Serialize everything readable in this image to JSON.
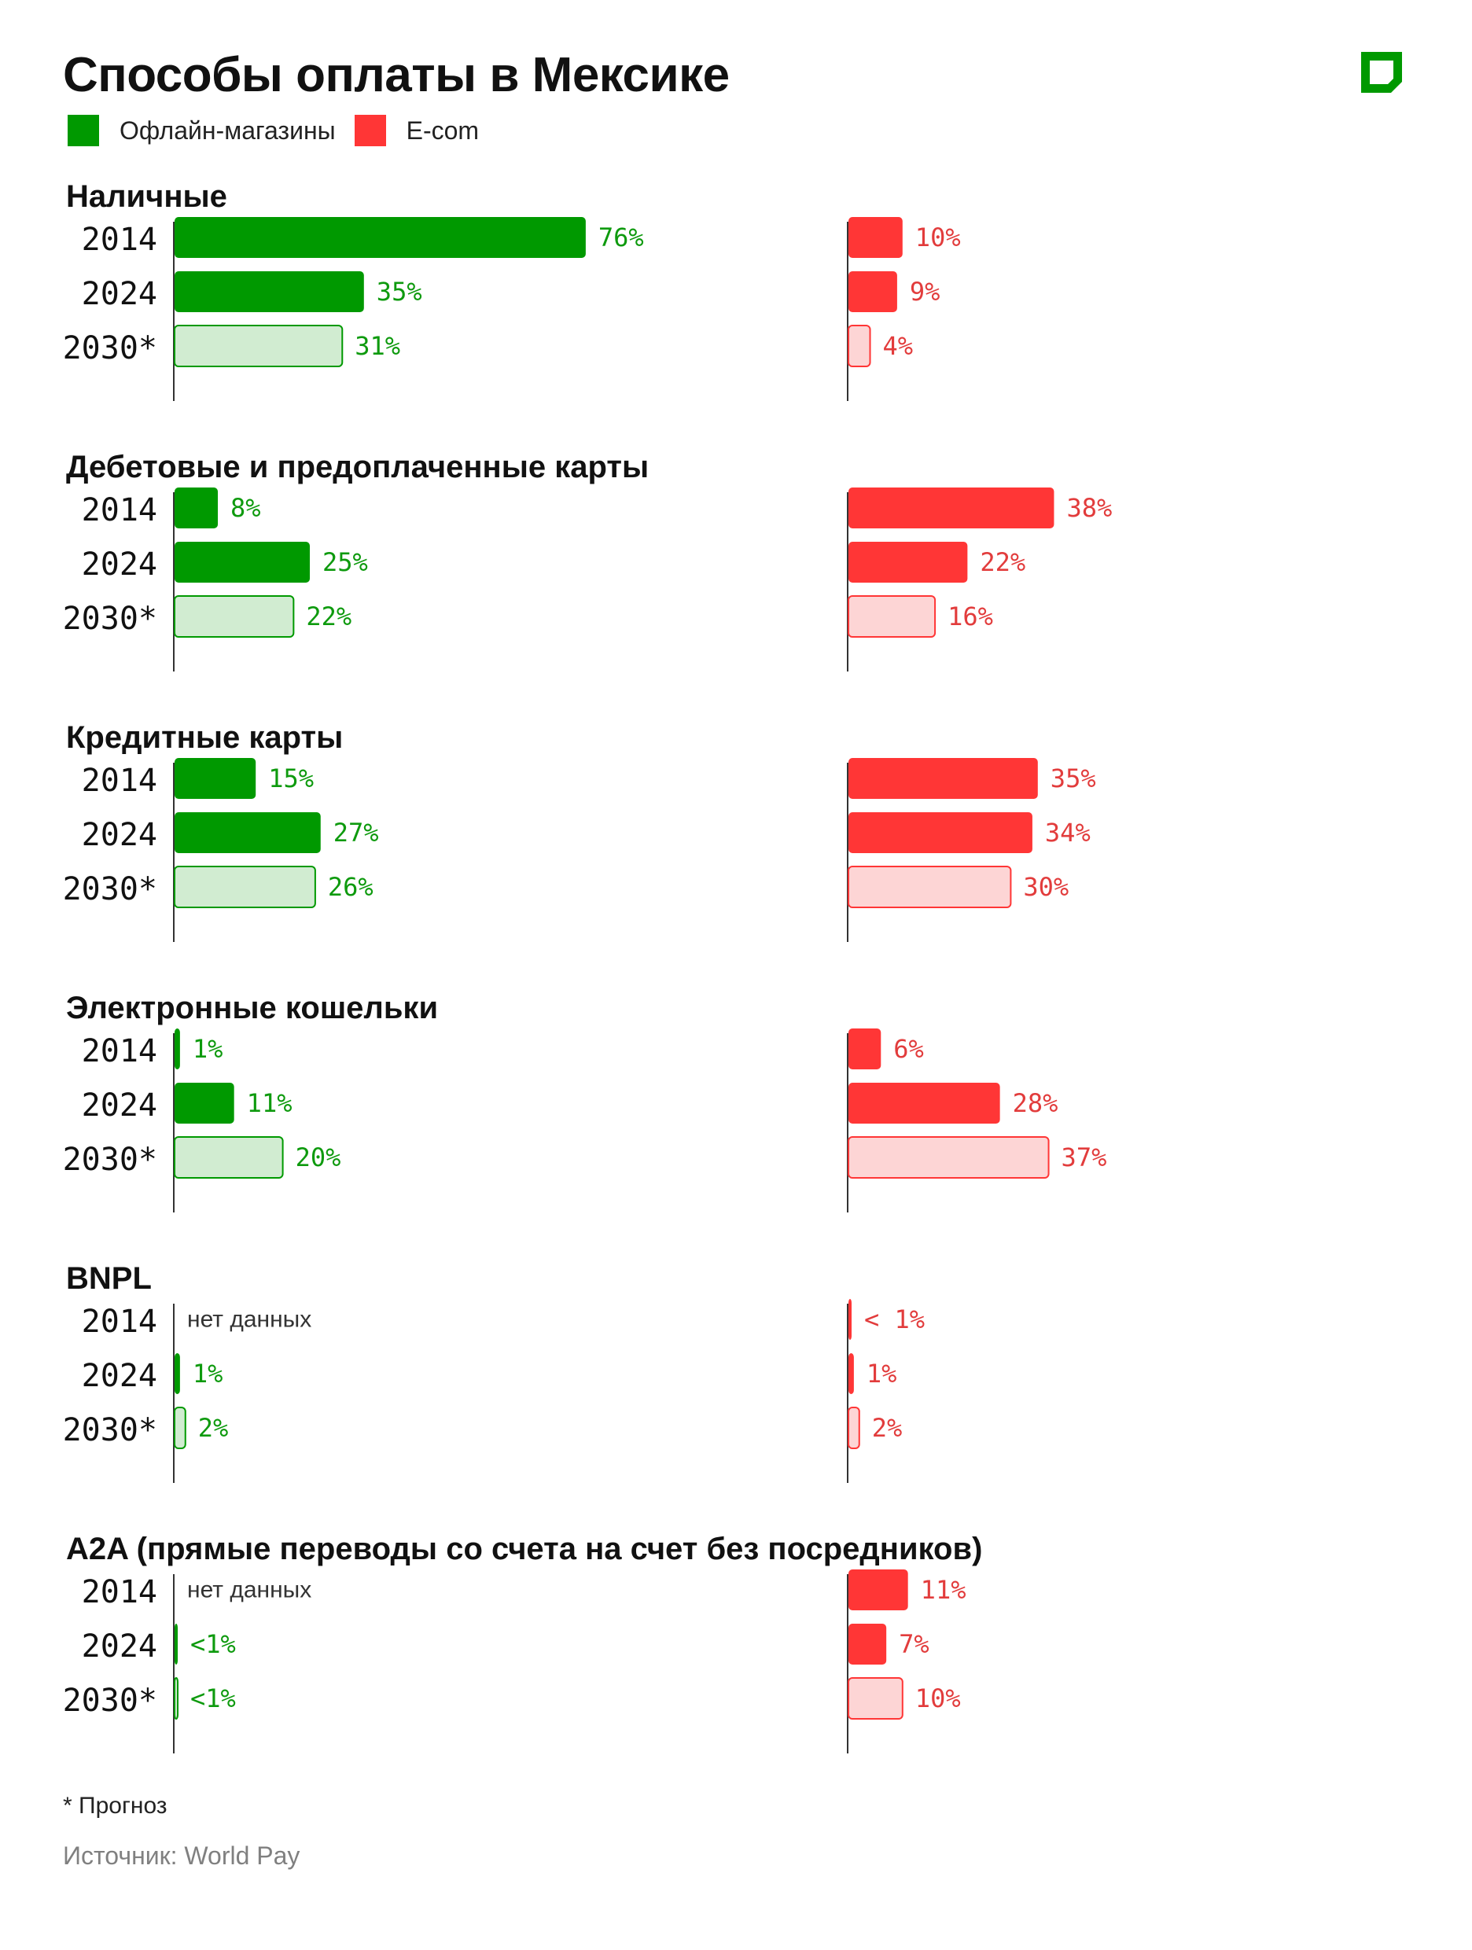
{
  "colors": {
    "offline": "#009900",
    "offline_forecast_fill": "#d1ecd1",
    "ecom": "#ff3636",
    "ecom_forecast_fill": "#fdd5d5",
    "offline_text": "#0e9a0e",
    "ecom_text": "#e23c3c",
    "axis": "#333333"
  },
  "logo": {
    "icon": "brand-square-logo-icon"
  },
  "footnote": "* Прогноз",
  "source": "Источник: World Pay",
  "chart_data": {
    "type": "bar",
    "orientation": "horizontal",
    "title": "Способы оплаты в Мексике",
    "unit": "%",
    "legend": [
      {
        "key": "offline",
        "label": "Офлайн-магазины"
      },
      {
        "key": "ecom",
        "label": "E-com"
      }
    ],
    "categories": [
      "2014",
      "2024",
      "2030*"
    ],
    "forecast_category": "2030*",
    "groups": [
      {
        "name": "Наличные",
        "series": [
          {
            "name": "Офлайн-магазины",
            "values": [
              76,
              35,
              31
            ],
            "labels": [
              "76%",
              "35%",
              "31%"
            ]
          },
          {
            "name": "E-com",
            "values": [
              10,
              9,
              4
            ],
            "labels": [
              "10%",
              "9%",
              "4%"
            ]
          }
        ]
      },
      {
        "name": "Дебетовые и предоплаченные карты",
        "series": [
          {
            "name": "Офлайн-магазины",
            "values": [
              8,
              25,
              22
            ],
            "labels": [
              "8%",
              "25%",
              "22%"
            ]
          },
          {
            "name": "E-com",
            "values": [
              38,
              22,
              16
            ],
            "labels": [
              "38%",
              "22%",
              "16%"
            ]
          }
        ]
      },
      {
        "name": "Кредитные карты",
        "series": [
          {
            "name": "Офлайн-магазины",
            "values": [
              15,
              27,
              26
            ],
            "labels": [
              "15%",
              "27%",
              "26%"
            ]
          },
          {
            "name": "E-com",
            "values": [
              35,
              34,
              30
            ],
            "labels": [
              "35%",
              "34%",
              "30%"
            ]
          }
        ]
      },
      {
        "name": "Электронные кошельки",
        "series": [
          {
            "name": "Офлайн-магазины",
            "values": [
              1,
              11,
              20
            ],
            "labels": [
              "1%",
              "11%",
              "20%"
            ]
          },
          {
            "name": "E-com",
            "values": [
              6,
              28,
              37
            ],
            "labels": [
              "6%",
              "28%",
              "37%"
            ]
          }
        ]
      },
      {
        "name": "BNPL",
        "series": [
          {
            "name": "Офлайн-магазины",
            "values": [
              null,
              1,
              2
            ],
            "labels": [
              "нет данных",
              "1%",
              "2%"
            ]
          },
          {
            "name": "E-com",
            "values": [
              0.5,
              1,
              2
            ],
            "labels": [
              "< 1%",
              "1%",
              "2%"
            ]
          }
        ]
      },
      {
        "name": "A2A (прямые переводы со счета на счет без посредников)",
        "series": [
          {
            "name": "Офлайн-магазины",
            "values": [
              null,
              0.5,
              0.5
            ],
            "labels": [
              "нет данных",
              "<1%",
              "<1%"
            ]
          },
          {
            "name": "E-com",
            "values": [
              11,
              7,
              10
            ],
            "labels": [
              "11%",
              "7%",
              "10%"
            ]
          }
        ]
      }
    ]
  }
}
